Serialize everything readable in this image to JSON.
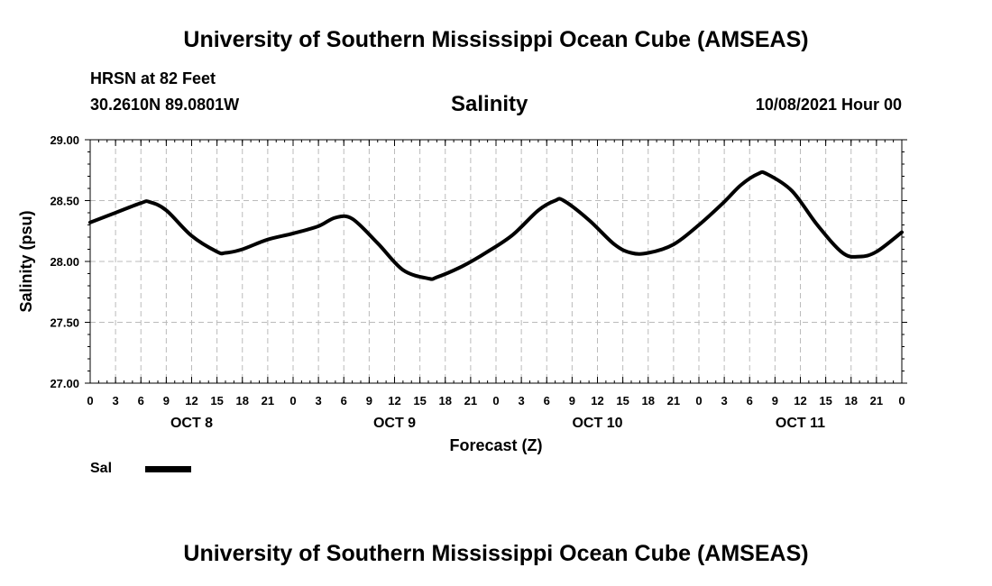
{
  "header": {
    "title": "University of Southern Mississippi Ocean Cube (AMSEAS)",
    "station": "HRSN at 82 Feet",
    "location": "30.2610N  89.0801W",
    "datetime": "10/08/2021 Hour 00"
  },
  "footer": {
    "title": "University of Southern Mississippi Ocean Cube (AMSEAS)"
  },
  "colors": {
    "line": "#000000",
    "grid": "#bbbbbb"
  },
  "chart_data": {
    "type": "line",
    "title": "Salinity",
    "xlabel": "Forecast (Z)",
    "ylabel": "Salinity (psu)",
    "ylim": [
      27.0,
      29.0
    ],
    "xlim_hours": [
      0,
      96
    ],
    "y_ticks": [
      "27.00",
      "27.50",
      "28.00",
      "28.50",
      "29.00"
    ],
    "x_tick_labels": [
      "0",
      "3",
      "6",
      "9",
      "12",
      "15",
      "18",
      "21",
      "0",
      "3",
      "6",
      "9",
      "12",
      "15",
      "18",
      "21",
      "0",
      "3",
      "6",
      "9",
      "12",
      "15",
      "18",
      "21",
      "0",
      "3",
      "6",
      "9",
      "12",
      "15",
      "18",
      "21",
      "0"
    ],
    "day_labels": [
      {
        "label": "OCT 8",
        "center_hour": 12
      },
      {
        "label": "OCT 9",
        "center_hour": 36
      },
      {
        "label": "OCT 10",
        "center_hour": 60
      },
      {
        "label": "OCT 11",
        "center_hour": 84
      }
    ],
    "grid": true,
    "legend": [
      {
        "name": "Sal",
        "placement": "bottom-left"
      }
    ],
    "series": [
      {
        "name": "Sal",
        "hours": [
          0,
          3,
          6,
          7,
          9,
          12,
          15,
          16,
          18,
          21,
          24,
          27,
          29,
          31,
          34,
          37,
          40,
          41,
          44,
          47,
          50,
          53,
          55,
          56,
          59,
          62,
          64,
          66,
          69,
          72,
          75,
          77,
          79,
          80,
          83,
          86,
          89,
          91,
          93,
          96
        ],
        "values": [
          28.32,
          28.4,
          28.48,
          28.49,
          28.42,
          28.21,
          28.08,
          28.07,
          28.1,
          28.18,
          28.23,
          28.29,
          28.36,
          28.35,
          28.15,
          27.93,
          27.86,
          27.87,
          27.96,
          28.08,
          28.22,
          28.42,
          28.5,
          28.5,
          28.34,
          28.14,
          28.07,
          28.07,
          28.14,
          28.3,
          28.49,
          28.63,
          28.72,
          28.72,
          28.58,
          28.3,
          28.07,
          28.04,
          28.08,
          28.24
        ]
      }
    ]
  }
}
